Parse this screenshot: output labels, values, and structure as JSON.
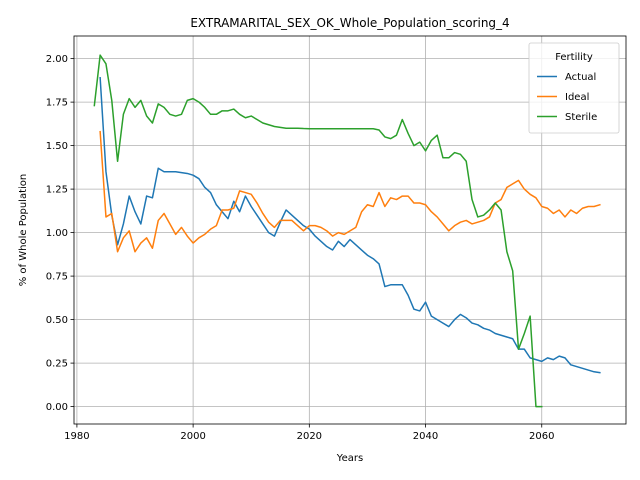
{
  "chart_data": {
    "type": "line",
    "title": "EXTRAMARITAL_SEX_OK_Whole_Population_scoring_4",
    "xlabel": "Years",
    "ylabel": "% of Whole Population",
    "xlim": [
      1979.5,
      2074.5
    ],
    "ylim": [
      -0.1,
      2.13
    ],
    "xticks": [
      1980,
      2000,
      2020,
      2040,
      2060
    ],
    "yticks": [
      0.0,
      0.25,
      0.5,
      0.75,
      1.0,
      1.25,
      1.5,
      1.75,
      2.0
    ],
    "ytick_labels": [
      "0.00",
      "0.25",
      "0.50",
      "0.75",
      "1.00",
      "1.25",
      "1.50",
      "1.75",
      "2.00"
    ],
    "grid": true,
    "legend": {
      "title": "Fertility",
      "position": "upper right"
    },
    "series": [
      {
        "name": "Actual",
        "color": "#1f77b4",
        "points": [
          [
            1984,
            1.89
          ],
          [
            1985,
            1.35
          ],
          [
            1986,
            1.1
          ],
          [
            1987,
            0.93
          ],
          [
            1988,
            1.05
          ],
          [
            1989,
            1.21
          ],
          [
            1990,
            1.12
          ],
          [
            1991,
            1.05
          ],
          [
            1992,
            1.21
          ],
          [
            1993,
            1.2
          ],
          [
            1994,
            1.37
          ],
          [
            1995,
            1.35
          ],
          [
            1996,
            1.35
          ],
          [
            1997,
            1.35
          ],
          [
            1998,
            1.345
          ],
          [
            1999,
            1.34
          ],
          [
            2000,
            1.33
          ],
          [
            2001,
            1.31
          ],
          [
            2002,
            1.26
          ],
          [
            2003,
            1.23
          ],
          [
            2004,
            1.16
          ],
          [
            2005,
            1.12
          ],
          [
            2006,
            1.08
          ],
          [
            2007,
            1.18
          ],
          [
            2008,
            1.12
          ],
          [
            2009,
            1.21
          ],
          [
            2010,
            1.15
          ],
          [
            2011,
            1.1
          ],
          [
            2012,
            1.05
          ],
          [
            2013,
            1.0
          ],
          [
            2014,
            0.98
          ],
          [
            2015,
            1.06
          ],
          [
            2016,
            1.13
          ],
          [
            2017,
            1.1
          ],
          [
            2018,
            1.07
          ],
          [
            2019,
            1.04
          ],
          [
            2020,
            1.02
          ],
          [
            2021,
            0.98
          ],
          [
            2022,
            0.95
          ],
          [
            2023,
            0.92
          ],
          [
            2024,
            0.9
          ],
          [
            2025,
            0.95
          ],
          [
            2026,
            0.92
          ],
          [
            2027,
            0.96
          ],
          [
            2028,
            0.93
          ],
          [
            2029,
            0.9
          ],
          [
            2030,
            0.87
          ],
          [
            2031,
            0.85
          ],
          [
            2032,
            0.82
          ],
          [
            2033,
            0.69
          ],
          [
            2034,
            0.7
          ],
          [
            2035,
            0.7
          ],
          [
            2036,
            0.7
          ],
          [
            2037,
            0.64
          ],
          [
            2038,
            0.56
          ],
          [
            2039,
            0.55
          ],
          [
            2040,
            0.6
          ],
          [
            2041,
            0.52
          ],
          [
            2042,
            0.5
          ],
          [
            2043,
            0.48
          ],
          [
            2044,
            0.46
          ],
          [
            2045,
            0.5
          ],
          [
            2046,
            0.53
          ],
          [
            2047,
            0.51
          ],
          [
            2048,
            0.48
          ],
          [
            2049,
            0.47
          ],
          [
            2050,
            0.45
          ],
          [
            2051,
            0.44
          ],
          [
            2052,
            0.42
          ],
          [
            2053,
            0.41
          ],
          [
            2054,
            0.4
          ],
          [
            2055,
            0.39
          ],
          [
            2056,
            0.33
          ],
          [
            2057,
            0.33
          ],
          [
            2058,
            0.28
          ],
          [
            2059,
            0.27
          ],
          [
            2060,
            0.26
          ],
          [
            2061,
            0.28
          ],
          [
            2062,
            0.27
          ],
          [
            2063,
            0.29
          ],
          [
            2064,
            0.28
          ],
          [
            2065,
            0.24
          ],
          [
            2066,
            0.23
          ],
          [
            2067,
            0.22
          ],
          [
            2068,
            0.21
          ],
          [
            2069,
            0.2
          ],
          [
            2070,
            0.195
          ]
        ]
      },
      {
        "name": "Ideal",
        "color": "#ff7f0e",
        "points": [
          [
            1984,
            1.58
          ],
          [
            1985,
            1.09
          ],
          [
            1986,
            1.11
          ],
          [
            1987,
            0.89
          ],
          [
            1988,
            0.97
          ],
          [
            1989,
            1.01
          ],
          [
            1990,
            0.89
          ],
          [
            1991,
            0.94
          ],
          [
            1992,
            0.97
          ],
          [
            1993,
            0.91
          ],
          [
            1994,
            1.07
          ],
          [
            1995,
            1.11
          ],
          [
            1996,
            1.05
          ],
          [
            1997,
            0.99
          ],
          [
            1998,
            1.03
          ],
          [
            1999,
            0.98
          ],
          [
            2000,
            0.94
          ],
          [
            2001,
            0.97
          ],
          [
            2002,
            0.99
          ],
          [
            2003,
            1.02
          ],
          [
            2004,
            1.04
          ],
          [
            2005,
            1.13
          ],
          [
            2006,
            1.13
          ],
          [
            2007,
            1.14
          ],
          [
            2008,
            1.24
          ],
          [
            2009,
            1.23
          ],
          [
            2010,
            1.22
          ],
          [
            2011,
            1.17
          ],
          [
            2012,
            1.11
          ],
          [
            2013,
            1.06
          ],
          [
            2014,
            1.03
          ],
          [
            2015,
            1.07
          ],
          [
            2016,
            1.07
          ],
          [
            2017,
            1.07
          ],
          [
            2018,
            1.04
          ],
          [
            2019,
            1.01
          ],
          [
            2020,
            1.04
          ],
          [
            2021,
            1.04
          ],
          [
            2022,
            1.03
          ],
          [
            2023,
            1.01
          ],
          [
            2024,
            0.98
          ],
          [
            2025,
            1.0
          ],
          [
            2026,
            0.99
          ],
          [
            2027,
            1.01
          ],
          [
            2028,
            1.03
          ],
          [
            2029,
            1.12
          ],
          [
            2030,
            1.16
          ],
          [
            2031,
            1.15
          ],
          [
            2032,
            1.23
          ],
          [
            2033,
            1.15
          ],
          [
            2034,
            1.2
          ],
          [
            2035,
            1.19
          ],
          [
            2036,
            1.21
          ],
          [
            2037,
            1.21
          ],
          [
            2038,
            1.17
          ],
          [
            2039,
            1.17
          ],
          [
            2040,
            1.16
          ],
          [
            2041,
            1.12
          ],
          [
            2042,
            1.09
          ],
          [
            2043,
            1.05
          ],
          [
            2044,
            1.01
          ],
          [
            2045,
            1.04
          ],
          [
            2046,
            1.06
          ],
          [
            2047,
            1.07
          ],
          [
            2048,
            1.05
          ],
          [
            2049,
            1.06
          ],
          [
            2050,
            1.07
          ],
          [
            2051,
            1.09
          ],
          [
            2052,
            1.17
          ],
          [
            2053,
            1.19
          ],
          [
            2054,
            1.26
          ],
          [
            2055,
            1.28
          ],
          [
            2056,
            1.3
          ],
          [
            2057,
            1.25
          ],
          [
            2058,
            1.22
          ],
          [
            2059,
            1.2
          ],
          [
            2060,
            1.15
          ],
          [
            2061,
            1.14
          ],
          [
            2062,
            1.11
          ],
          [
            2063,
            1.13
          ],
          [
            2064,
            1.09
          ],
          [
            2065,
            1.13
          ],
          [
            2066,
            1.11
          ],
          [
            2067,
            1.14
          ],
          [
            2068,
            1.15
          ],
          [
            2069,
            1.15
          ],
          [
            2070,
            1.16
          ]
        ]
      },
      {
        "name": "Sterile",
        "color": "#2ca02c",
        "points": [
          [
            1983,
            1.73
          ],
          [
            1984,
            2.02
          ],
          [
            1985,
            1.97
          ],
          [
            1986,
            1.76
          ],
          [
            1987,
            1.41
          ],
          [
            1988,
            1.68
          ],
          [
            1989,
            1.77
          ],
          [
            1990,
            1.72
          ],
          [
            1991,
            1.76
          ],
          [
            1992,
            1.67
          ],
          [
            1993,
            1.63
          ],
          [
            1994,
            1.74
          ],
          [
            1995,
            1.72
          ],
          [
            1996,
            1.68
          ],
          [
            1997,
            1.67
          ],
          [
            1998,
            1.68
          ],
          [
            1999,
            1.76
          ],
          [
            2000,
            1.77
          ],
          [
            2001,
            1.75
          ],
          [
            2002,
            1.72
          ],
          [
            2003,
            1.68
          ],
          [
            2004,
            1.68
          ],
          [
            2005,
            1.7
          ],
          [
            2006,
            1.7
          ],
          [
            2007,
            1.71
          ],
          [
            2008,
            1.68
          ],
          [
            2009,
            1.66
          ],
          [
            2010,
            1.67
          ],
          [
            2011,
            1.65
          ],
          [
            2012,
            1.63
          ],
          [
            2013,
            1.62
          ],
          [
            2014,
            1.61
          ],
          [
            2015,
            1.605
          ],
          [
            2016,
            1.6
          ],
          [
            2017,
            1.6
          ],
          [
            2018,
            1.6
          ],
          [
            2019,
            1.598
          ],
          [
            2020,
            1.597
          ],
          [
            2021,
            1.597
          ],
          [
            2022,
            1.597
          ],
          [
            2023,
            1.597
          ],
          [
            2024,
            1.597
          ],
          [
            2025,
            1.597
          ],
          [
            2026,
            1.597
          ],
          [
            2027,
            1.597
          ],
          [
            2028,
            1.597
          ],
          [
            2029,
            1.597
          ],
          [
            2030,
            1.597
          ],
          [
            2031,
            1.597
          ],
          [
            2032,
            1.59
          ],
          [
            2033,
            1.55
          ],
          [
            2034,
            1.54
          ],
          [
            2035,
            1.56
          ],
          [
            2036,
            1.65
          ],
          [
            2037,
            1.57
          ],
          [
            2038,
            1.5
          ],
          [
            2039,
            1.52
          ],
          [
            2040,
            1.47
          ],
          [
            2041,
            1.53
          ],
          [
            2042,
            1.56
          ],
          [
            2043,
            1.43
          ],
          [
            2044,
            1.43
          ],
          [
            2045,
            1.46
          ],
          [
            2046,
            1.45
          ],
          [
            2047,
            1.41
          ],
          [
            2048,
            1.19
          ],
          [
            2049,
            1.09
          ],
          [
            2050,
            1.1
          ],
          [
            2051,
            1.13
          ],
          [
            2052,
            1.17
          ],
          [
            2053,
            1.13
          ],
          [
            2054,
            0.89
          ],
          [
            2055,
            0.78
          ],
          [
            2056,
            0.33
          ],
          [
            2057,
            0.42
          ],
          [
            2058,
            0.52
          ],
          [
            2059,
            0.0
          ],
          [
            2060,
            0.0
          ]
        ]
      }
    ]
  }
}
